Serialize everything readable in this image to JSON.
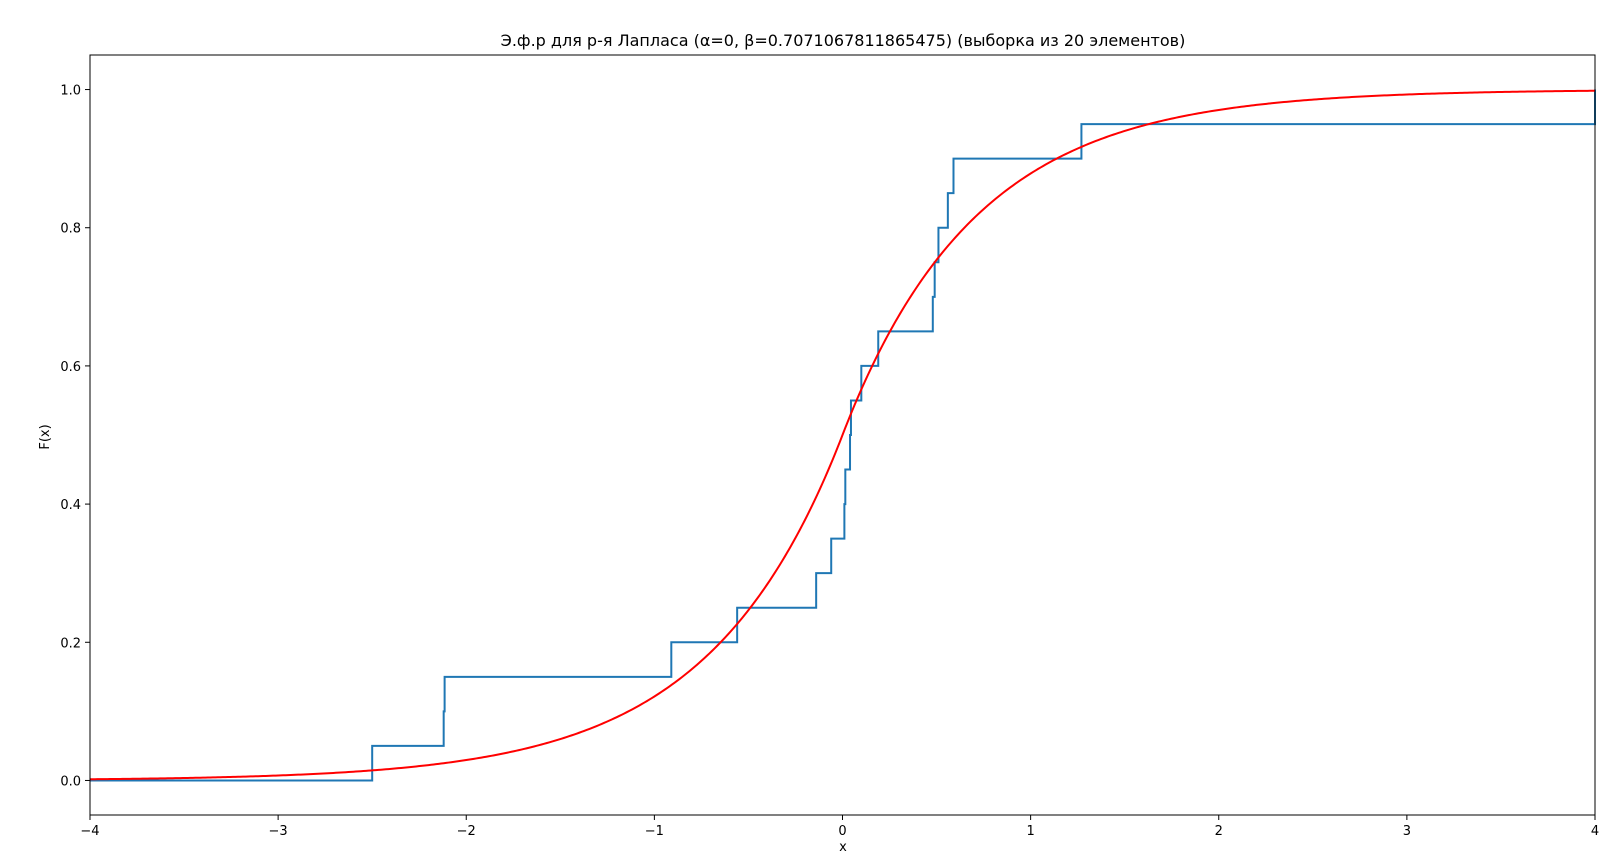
{
  "chart_data": {
    "type": "line",
    "title": "Э.ф.р для р-я Лапласа (α=0, β=0.7071067811865475) (выборка из 20 элементов)",
    "xlabel": "x",
    "ylabel": "F(x)",
    "xlim": [
      -4,
      4
    ],
    "ylim": [
      -0.05,
      1.05
    ],
    "xticks": [
      -4,
      -3,
      -2,
      -1,
      0,
      1,
      2,
      3,
      4
    ],
    "xtick_labels": [
      "−4",
      "−3",
      "−2",
      "−1",
      "0",
      "1",
      "2",
      "3",
      "4"
    ],
    "yticks": [
      0.0,
      0.2,
      0.4,
      0.6,
      0.8,
      1.0
    ],
    "ytick_labels": [
      "0.0",
      "0.2",
      "0.4",
      "0.6",
      "0.8",
      "1.0"
    ],
    "grid": false,
    "series": [
      {
        "kind": "step",
        "color": "#1f77b4",
        "sample": [
          -2.5,
          -2.12,
          -2.115,
          -0.91,
          -0.56,
          -0.14,
          -0.06,
          0.01,
          0.015,
          0.04,
          0.045,
          0.1,
          0.19,
          0.48,
          0.49,
          0.51,
          0.56,
          0.59,
          1.27,
          4.0
        ]
      },
      {
        "kind": "cdf",
        "color": "#ff0000",
        "distribution": "Laplace",
        "alpha": 0,
        "beta": 0.7071067811865475
      }
    ]
  }
}
